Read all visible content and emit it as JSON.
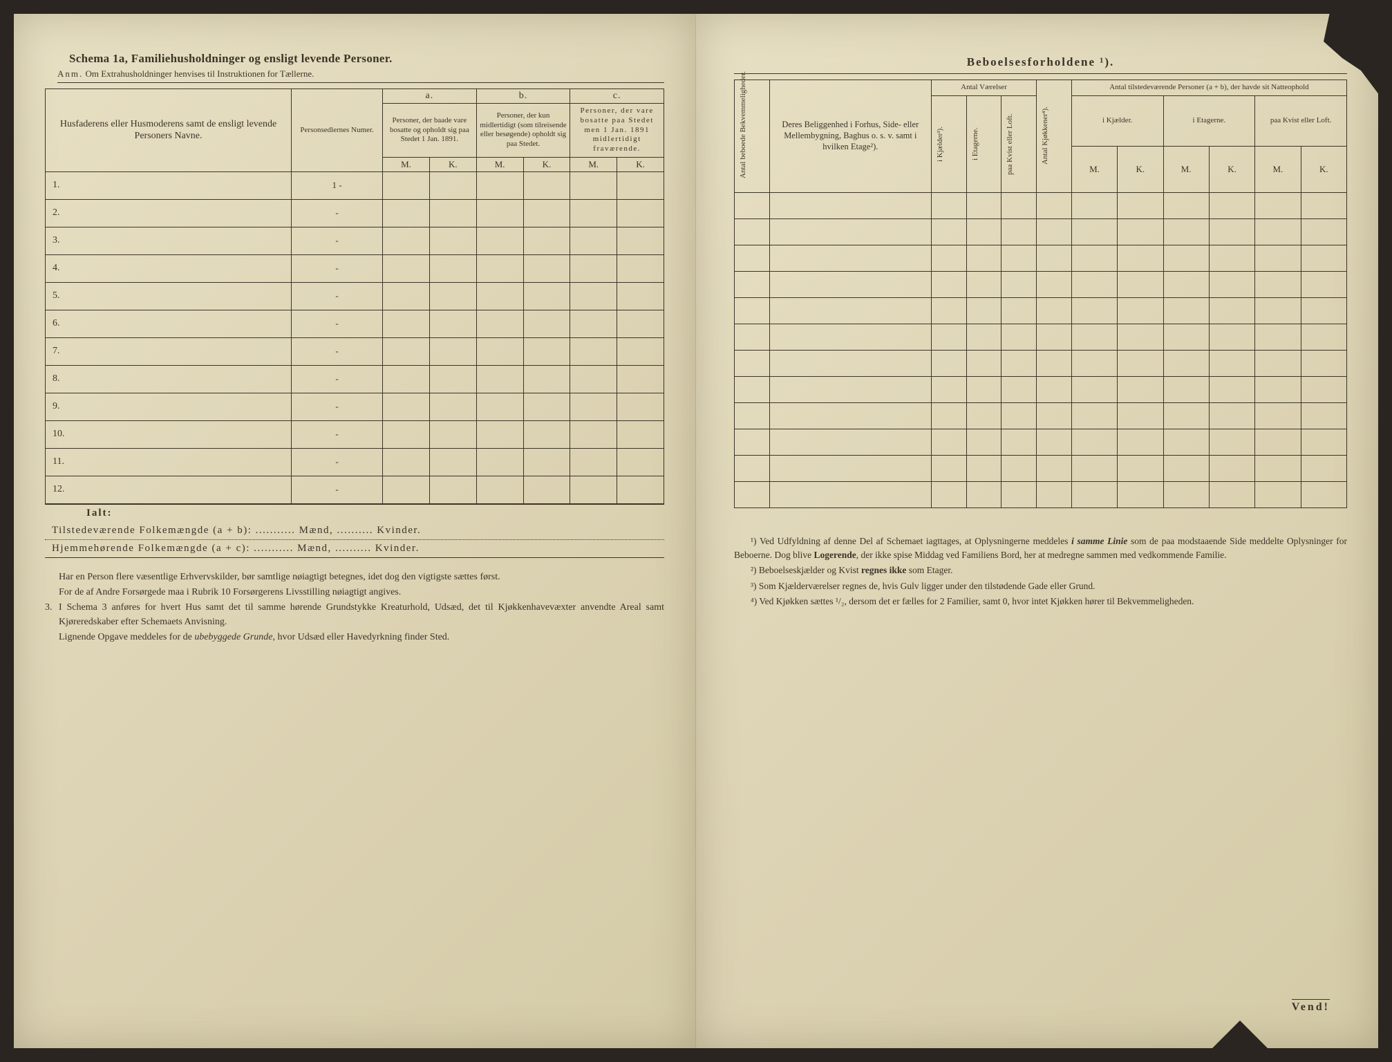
{
  "colors": {
    "paper": "#e0d7b9",
    "ink": "#3a3428",
    "background": "#2a2520"
  },
  "typography": {
    "body_family": "Georgia, Times New Roman, serif",
    "title_size_pt": 17,
    "body_size_pt": 14,
    "table_size_pt": 13,
    "footnote_size_pt": 13.5
  },
  "left": {
    "schema_title": "Schema 1a,  Familiehusholdninger og ensligt levende Personer.",
    "anm_label": "Anm.",
    "anm_text": "Om Extrahusholdninger henvises til Instruktionen for Tællerne.",
    "col1_header": "Husfaderens eller Husmoderens samt de ensligt levende Personers Navne.",
    "col2_header": "Personsedlernes Numer.",
    "group_a": "a.",
    "group_b": "b.",
    "group_c": "c.",
    "col_a_desc": "Personer, der baade vare bosatte og opholdt sig paa Stedet 1 Jan. 1891.",
    "col_b_desc": "Personer, der kun midlertidigt (som tilreisende eller besøgende) opholdt sig paa Stedet.",
    "col_c_desc": "Personer, der vare bosatte paa Stedet men 1 Jan. 1891 midlertidigt fraværende.",
    "M": "M.",
    "K": "K.",
    "rows": [
      "1.",
      "2.",
      "3.",
      "4.",
      "5.",
      "6.",
      "7.",
      "8.",
      "9.",
      "10.",
      "11.",
      "12."
    ],
    "row1_num": "1 -",
    "other_num": "-",
    "ialt": "Ialt:",
    "summary1_a": "Tilstedeværende Folkemængde (a + b):",
    "summary1_b": "Mænd,",
    "summary1_c": "Kvinder.",
    "summary2_a": "Hjemmehørende Folkemængde (a + c):",
    "summary2_b": "Mænd,",
    "summary2_c": "Kvinder.",
    "para1": "Har en Person flere væsentlige Erhvervskilder, bør samtlige nøiagtigt betegnes, idet dog den vigtigste sættes først.",
    "para2": "For de af Andre Forsørgede maa i Rubrik 10 Forsørgerens Livsstilling nøiagtigt angives.",
    "para3_num": "3.",
    "para3": "I Schema 3 anføres for hvert Hus samt det til samme hørende Grundstykke Kreaturhold, Udsæd, det til Kjøkkenhavevæxter anvendte Areal samt Kjøreredskaber efter Schemaets Anvisning.",
    "para4a": "Lignende Opgave meddeles for de ",
    "para4b": "ubebyggede Grunde",
    "para4c": ", hvor Udsæd eller Havedyrkning finder Sted."
  },
  "right": {
    "title": "Beboelsesforholdene ¹).",
    "col_antal_bekv": "Antal beboede Bekvemmeligheder.",
    "col_beliggenhed": "Deres Beliggenhed i Forhus, Side- eller Mellembygning, Baghus o. s. v. samt i hvilken Etage²).",
    "group_vaerelser": "Antal Værelser",
    "col_kjaelder": "i Kjælder³).",
    "col_etagerne": "i Etagerne.",
    "col_kvist": "paa Kvist eller Loft.",
    "col_kjokkener": "Antal Kjøkkener⁴).",
    "group_personer": "Antal tilstedeværende Personer (a + b), der havde sit Natteophold",
    "sub_kjael": "i Kjælder.",
    "sub_etag": "i Etagerne.",
    "sub_kvist": "paa Kvist eller Loft.",
    "M": "M.",
    "K": "K.",
    "blank_rows": 12,
    "fn1a": "¹) Ved Udfyldning af denne Del af Schemaet iagttages, at Oplysningerne meddeles ",
    "fn1b": "i samme Linie",
    "fn1c": " som de paa modstaaende Side meddelte Oplysninger for Beboerne. Dog blive ",
    "fn1d": "Logerende",
    "fn1e": ", der ikke spise Middag ved Familiens Bord, her at medregne sammen med vedkommende Familie.",
    "fn2a": "²) Beboelseskjælder og Kvist ",
    "fn2b": "regnes ikke",
    "fn2c": " som Etager.",
    "fn3": "³) Som Kjælderværelser regnes de, hvis Gulv ligger under den tilstødende Gade eller Grund.",
    "fn4a": "⁴) Ved Kjøkken sættes ",
    "fn4b": "¹/₂",
    "fn4c": ", dersom det er fælles for 2 Familier, samt 0, hvor intet Kjøkken hører til Bekvemmeligheden.",
    "vend": "Vend!"
  }
}
